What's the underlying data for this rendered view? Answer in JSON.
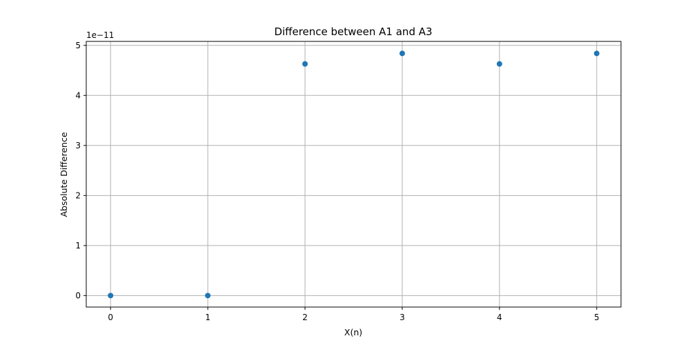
{
  "chart_data": {
    "type": "scatter",
    "title": "Difference between A1 and A3",
    "xlabel": "X(n)",
    "ylabel": "Absolute Difference",
    "y_offset_label": "1e−11",
    "x": [
      0,
      1,
      2,
      3,
      4,
      5
    ],
    "y": [
      0,
      0,
      4.63e-11,
      4.84e-11,
      4.63e-11,
      4.84e-11
    ],
    "xlim": [
      -0.25,
      5.25
    ],
    "ylim": [
      -2.3e-12,
      5.08e-11
    ],
    "x_ticks": [
      0,
      1,
      2,
      3,
      4,
      5
    ],
    "x_tick_labels": [
      "0",
      "1",
      "2",
      "3",
      "4",
      "5"
    ],
    "y_ticks": [
      0,
      1e-11,
      2e-11,
      3e-11,
      4e-11,
      5e-11
    ],
    "y_tick_labels": [
      "0",
      "1",
      "2",
      "3",
      "4",
      "5"
    ],
    "grid": true,
    "marker_color": "#1f77b4"
  }
}
